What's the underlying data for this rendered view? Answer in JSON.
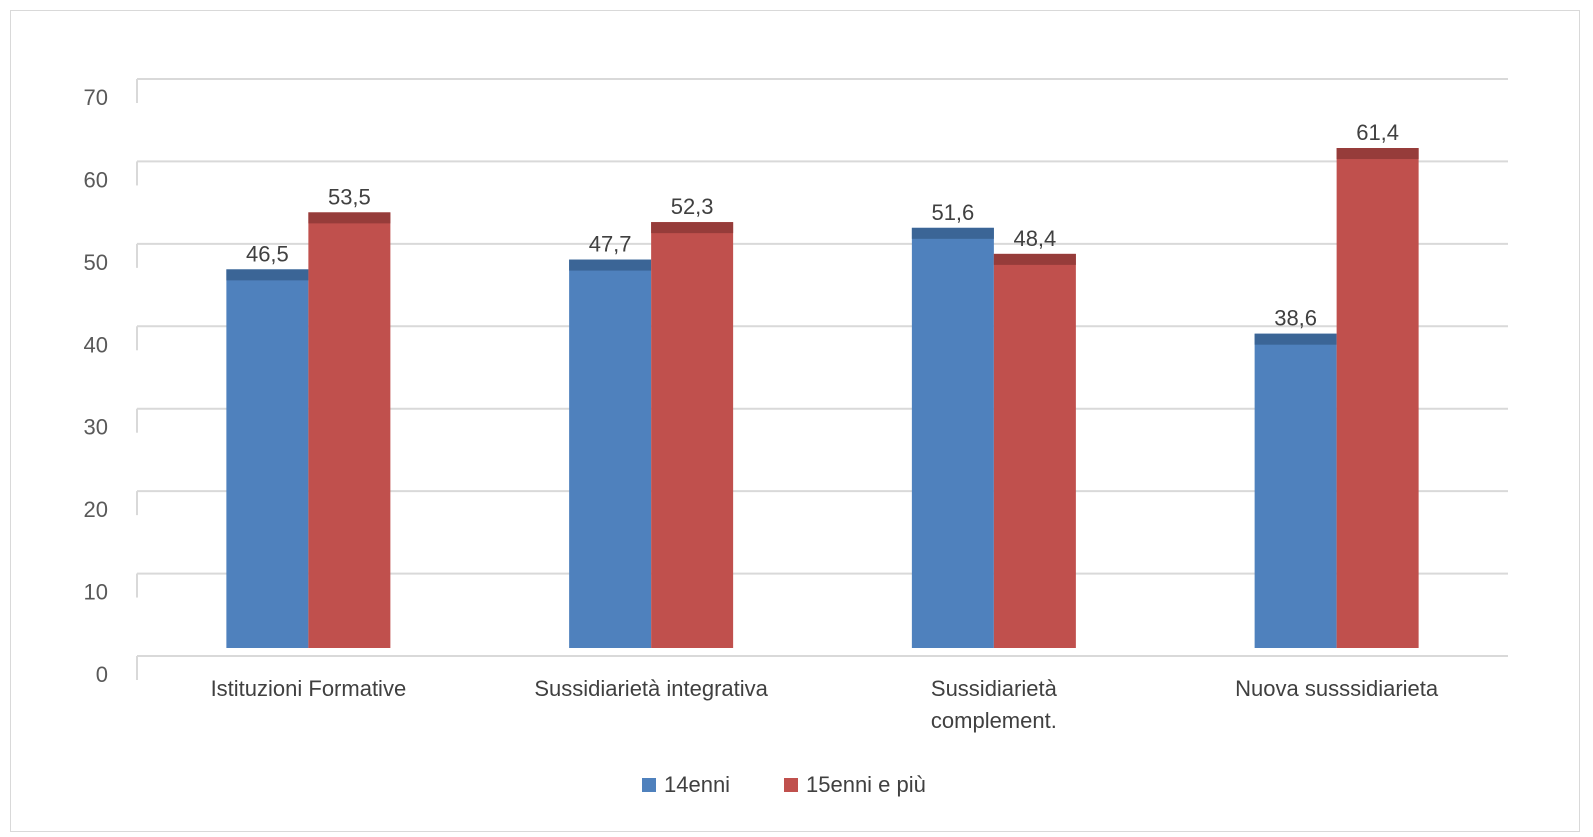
{
  "chart_data": {
    "type": "bar",
    "title": "",
    "xlabel": "",
    "ylabel": "",
    "ylim": [
      0,
      70
    ],
    "yticks": [
      0,
      10,
      20,
      30,
      40,
      50,
      60,
      70
    ],
    "grid": true,
    "legend_position": "bottom",
    "categories": [
      [
        "Istituzioni Formative"
      ],
      [
        "Sussidiarietà integrativa"
      ],
      [
        "Sussidiarietà",
        "complement."
      ],
      [
        "Nuova susssidiarieta"
      ]
    ],
    "series": [
      {
        "name": "14enni",
        "color": "#4f81bd",
        "cap_color": "#3b6596",
        "values": [
          46.5,
          47.7,
          51.6,
          38.6
        ],
        "labels": [
          "46,5",
          "47,7",
          "51,6",
          "38,6"
        ]
      },
      {
        "name": "15enni e più",
        "color": "#c0504d",
        "cap_color": "#963c3a",
        "values": [
          53.5,
          52.3,
          48.4,
          61.4
        ],
        "labels": [
          "53,5",
          "52,3",
          "48,4",
          "61,4"
        ]
      }
    ]
  }
}
